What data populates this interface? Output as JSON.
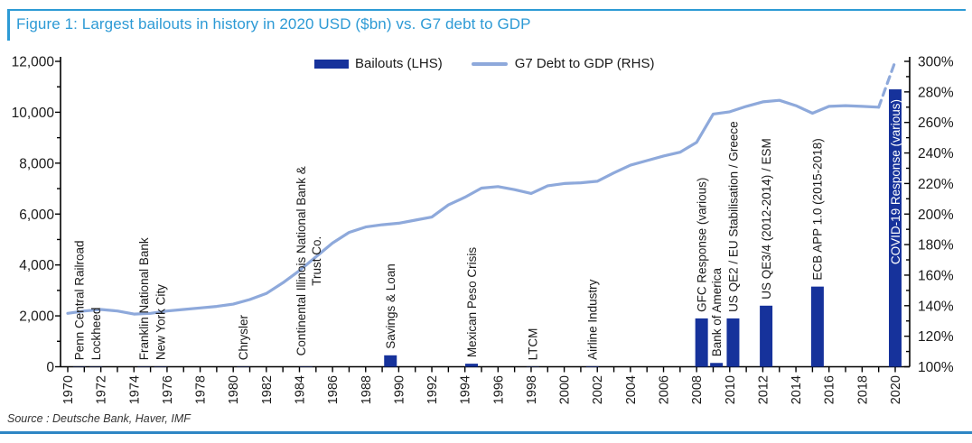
{
  "figure": {
    "title": "Figure 1: Largest bailouts in history in 2020 USD ($bn) vs. G7 debt to GDP",
    "source": "Source : Deutsche Bank, Haver, IMF"
  },
  "legend": {
    "bar_label": "Bailouts (LHS)",
    "line_label": "G7 Debt to GDP (RHS)"
  },
  "colors": {
    "bar": "#16329B",
    "line": "#8EA9DB",
    "title": "#2D9AD5",
    "top_rule": "#2D9AD5",
    "bottom_rule": "#2E86C4",
    "axis": "#000000",
    "text": "#1A1A1A",
    "inside_bar_text": "#FFFFFF"
  },
  "chart_data": {
    "type": "bar+line",
    "title": "Figure 1: Largest bailouts in history in 2020 USD ($bn) vs. G7 debt to GDP",
    "legend_position": "top-center",
    "grid": false,
    "x_axis": {
      "min": 1970,
      "max": 2020,
      "tick_every": 1,
      "labels": [
        "1970",
        "1972",
        "1974",
        "1976",
        "1978",
        "1980",
        "1982",
        "1984",
        "1986",
        "1988",
        "1990",
        "1992",
        "1994",
        "1996",
        "1998",
        "2000",
        "2002",
        "2004",
        "2006",
        "2008",
        "2010",
        "2012",
        "2014",
        "2016",
        "2018",
        "2020"
      ]
    },
    "left_axis": {
      "series": "Bailouts (LHS), 2020 USD $bn",
      "min": 0,
      "max": 12000,
      "minor_step": 1000,
      "ticks": [
        {
          "v": 0,
          "label": "0"
        },
        {
          "v": 2000,
          "label": "2,000"
        },
        {
          "v": 4000,
          "label": "4,000"
        },
        {
          "v": 6000,
          "label": "6,000"
        },
        {
          "v": 8000,
          "label": "8,000"
        },
        {
          "v": 10000,
          "label": "10,000"
        },
        {
          "v": 12000,
          "label": "12,000"
        }
      ]
    },
    "right_axis": {
      "series": "G7 Debt to GDP (RHS)",
      "min": 100,
      "max": 300,
      "minor_step": 10,
      "ticks": [
        {
          "v": 100,
          "label": "100%"
        },
        {
          "v": 120,
          "label": "120%"
        },
        {
          "v": 140,
          "label": "140%"
        },
        {
          "v": 160,
          "label": "160%"
        },
        {
          "v": 180,
          "label": "180%"
        },
        {
          "v": 200,
          "label": "200%"
        },
        {
          "v": 220,
          "label": "220%"
        },
        {
          "v": 240,
          "label": "240%"
        },
        {
          "v": 260,
          "label": "260%"
        },
        {
          "v": 280,
          "label": "280%"
        },
        {
          "v": 300,
          "label": "300%"
        }
      ]
    },
    "bars": [
      {
        "label": "Penn Central Railroad",
        "year": 1970.7,
        "value": 8
      },
      {
        "label": "Lockheed",
        "year": 1971.7,
        "value": 10
      },
      {
        "label": "Franklin National Bank",
        "year": 1974.6,
        "value": 10
      },
      {
        "label": "New York City",
        "year": 1975.6,
        "value": 12
      },
      {
        "label": "Chrysler",
        "year": 1980.6,
        "value": 10
      },
      {
        "label": "Continental Illinois National Bank & Trust Co.",
        "label_lines": [
          "Continental Illinois National Bank &",
          "Trust Co."
        ],
        "year": 1984.4,
        "value": 12
      },
      {
        "label": "Savings & Loan",
        "year": 1989.5,
        "value": 450
      },
      {
        "label": "Mexican Peso Crisis",
        "year": 1994.4,
        "value": 120
      },
      {
        "label": "LTCM",
        "year": 1998.1,
        "value": 6
      },
      {
        "label": "Airline Industry",
        "year": 2001.7,
        "value": 20
      },
      {
        "label": "GFC Response (various)",
        "year": 2008.3,
        "value": 1900
      },
      {
        "label": "Bank of America",
        "year": 2009.2,
        "value": 150
      },
      {
        "label": "US QE2 / EU Stabilisation / Greece",
        "year": 2010.2,
        "value": 1900
      },
      {
        "label": "US QE3/4 (2012-2014) / ESM",
        "year": 2012.2,
        "value": 2400
      },
      {
        "label": "ECB APP 1.0 (2015-2018)",
        "year": 2015.3,
        "value": 3150
      },
      {
        "label": "COVID-19 Response (various)",
        "year": 2020,
        "value": 10900,
        "label_inside": true
      }
    ],
    "line": {
      "name": "G7 Debt to GDP (RHS)",
      "unit": "%",
      "dashed_from_year": 2019,
      "points": [
        {
          "year": 1970,
          "pct": 135
        },
        {
          "year": 1971,
          "pct": 136.5
        },
        {
          "year": 1972,
          "pct": 137.5
        },
        {
          "year": 1973,
          "pct": 136.5
        },
        {
          "year": 1974,
          "pct": 134.5
        },
        {
          "year": 1975,
          "pct": 135
        },
        {
          "year": 1976,
          "pct": 136.5
        },
        {
          "year": 1977,
          "pct": 137.5
        },
        {
          "year": 1978,
          "pct": 138.5
        },
        {
          "year": 1979,
          "pct": 139.5
        },
        {
          "year": 1980,
          "pct": 141
        },
        {
          "year": 1981,
          "pct": 144
        },
        {
          "year": 1982,
          "pct": 148
        },
        {
          "year": 1983,
          "pct": 155
        },
        {
          "year": 1984,
          "pct": 163
        },
        {
          "year": 1985,
          "pct": 172
        },
        {
          "year": 1986,
          "pct": 181
        },
        {
          "year": 1987,
          "pct": 188
        },
        {
          "year": 1988,
          "pct": 191.5
        },
        {
          "year": 1989,
          "pct": 193
        },
        {
          "year": 1990,
          "pct": 194
        },
        {
          "year": 1991,
          "pct": 196
        },
        {
          "year": 1992,
          "pct": 198
        },
        {
          "year": 1993,
          "pct": 206
        },
        {
          "year": 1994,
          "pct": 211
        },
        {
          "year": 1995,
          "pct": 217
        },
        {
          "year": 1996,
          "pct": 218
        },
        {
          "year": 1997,
          "pct": 216
        },
        {
          "year": 1998,
          "pct": 213.5
        },
        {
          "year": 1999,
          "pct": 218.5
        },
        {
          "year": 2000,
          "pct": 220
        },
        {
          "year": 2001,
          "pct": 220.5
        },
        {
          "year": 2002,
          "pct": 221.5
        },
        {
          "year": 2003,
          "pct": 227
        },
        {
          "year": 2004,
          "pct": 232
        },
        {
          "year": 2005,
          "pct": 235
        },
        {
          "year": 2006,
          "pct": 238
        },
        {
          "year": 2007,
          "pct": 240.5
        },
        {
          "year": 2008,
          "pct": 247
        },
        {
          "year": 2009,
          "pct": 265.5
        },
        {
          "year": 2010,
          "pct": 267
        },
        {
          "year": 2011,
          "pct": 270.5
        },
        {
          "year": 2012,
          "pct": 273.5
        },
        {
          "year": 2013,
          "pct": 274.5
        },
        {
          "year": 2014,
          "pct": 271
        },
        {
          "year": 2015,
          "pct": 266
        },
        {
          "year": 2016,
          "pct": 270.5
        },
        {
          "year": 2017,
          "pct": 271
        },
        {
          "year": 2018,
          "pct": 270.5
        },
        {
          "year": 2019,
          "pct": 270
        },
        {
          "year": 2020,
          "pct": 300
        }
      ]
    }
  }
}
